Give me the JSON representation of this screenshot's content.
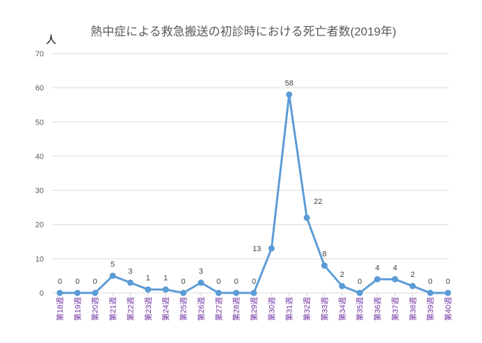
{
  "chart_data": {
    "type": "line",
    "title": "熱中症による救急搬送の初診時における死亡者数(2019年)",
    "ylabel": "人",
    "xlabel": "",
    "ylim": [
      0,
      70
    ],
    "yticks": [
      0,
      10,
      20,
      30,
      40,
      50,
      60,
      70
    ],
    "grid": true,
    "categories": [
      "第18週",
      "第19週",
      "第20週",
      "第21週",
      "第22週",
      "第23週",
      "第24週",
      "第25週",
      "第26週",
      "第27週",
      "第28週",
      "第29週",
      "第30週",
      "第31週",
      "第32週",
      "第33週",
      "第34週",
      "第35週",
      "第36週",
      "第37週",
      "第38週",
      "第39週",
      "第40週"
    ],
    "series": [
      {
        "name": "死亡者数",
        "values": [
          0,
          0,
          0,
          5,
          3,
          1,
          1,
          0,
          3,
          0,
          0,
          0,
          13,
          58,
          22,
          8,
          2,
          0,
          4,
          4,
          2,
          0,
          0
        ]
      }
    ],
    "colors": {
      "line": "#5B9BD5",
      "grid": "#D9D9D9",
      "title": "#595959",
      "tick": "#595959",
      "category": "#7030A0"
    }
  }
}
